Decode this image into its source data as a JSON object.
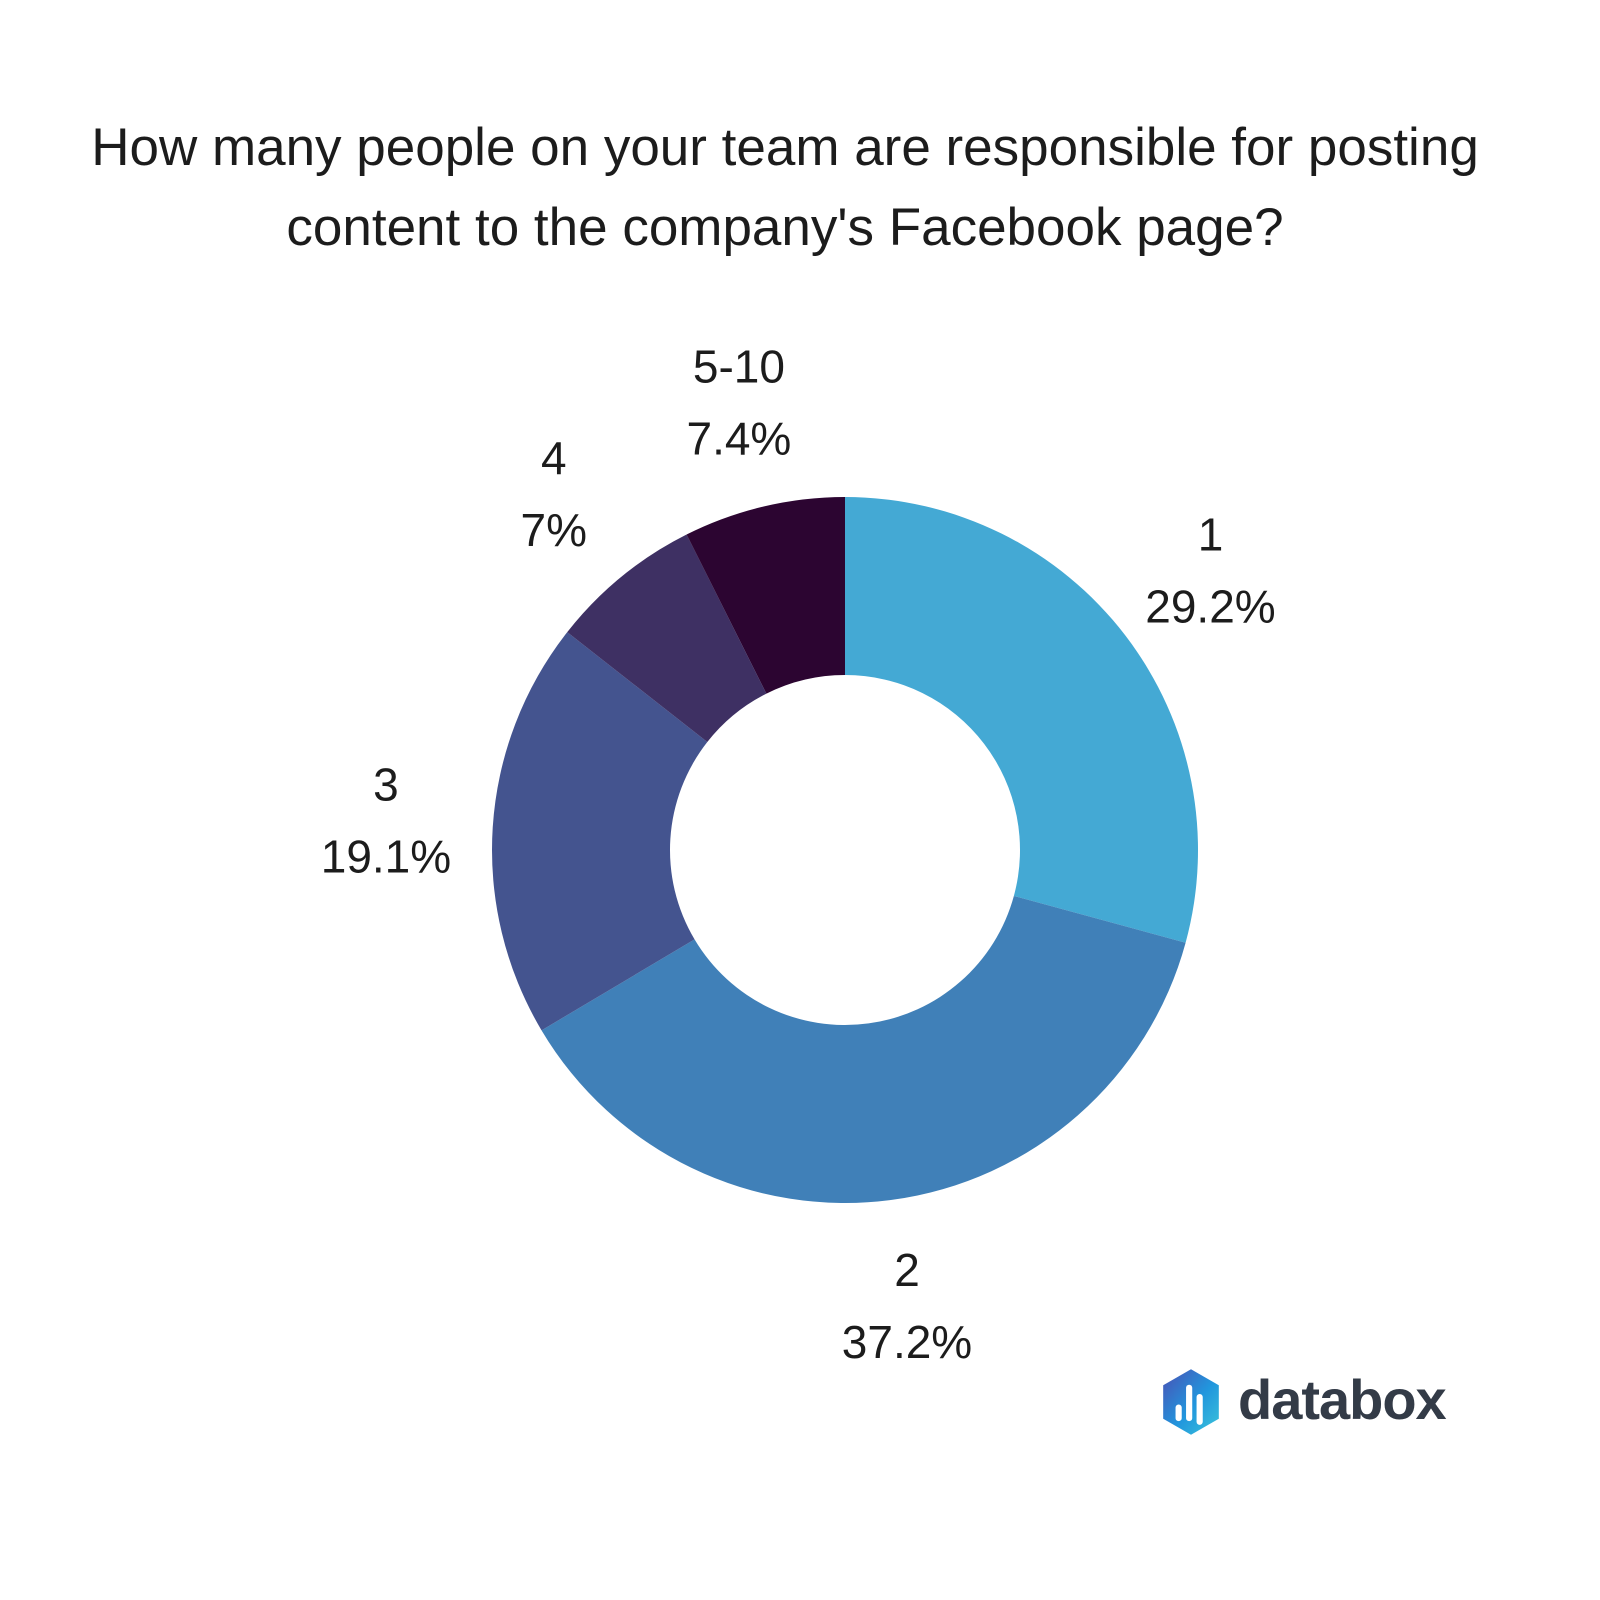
{
  "title": "How many people on your team are responsible for posting content to the company's Facebook page?",
  "chart_data": {
    "type": "pie",
    "subtype": "donut",
    "title": "How many people on your team are responsible for posting content to the company's Facebook page?",
    "categories": [
      "1",
      "2",
      "3",
      "4",
      "5-10"
    ],
    "values": [
      29.2,
      37.2,
      19.1,
      7,
      7.4
    ],
    "value_labels": [
      "29.2%",
      "37.2%",
      "19.1%",
      "7%",
      "7.4%"
    ],
    "colors": [
      "#44a9d4",
      "#4080b8",
      "#44548f",
      "#3e3063",
      "#2c0531"
    ],
    "start_angle_deg": 0,
    "direction": "clockwise",
    "inner_radius_ratio": 0.495,
    "legend_position": "none",
    "label_position": "outside",
    "label_text_color": "#1c1c1c",
    "background_color": "#ffffff"
  },
  "branding": {
    "logo_text": "databox",
    "logo_icon": "databox-hexagon-barchart-icon",
    "icon_gradient_colors": [
      "#4a50b4",
      "#2196dd",
      "#3cc5da"
    ],
    "icon_bar_color": "#ffffff",
    "wordmark_color": "#333b47"
  }
}
